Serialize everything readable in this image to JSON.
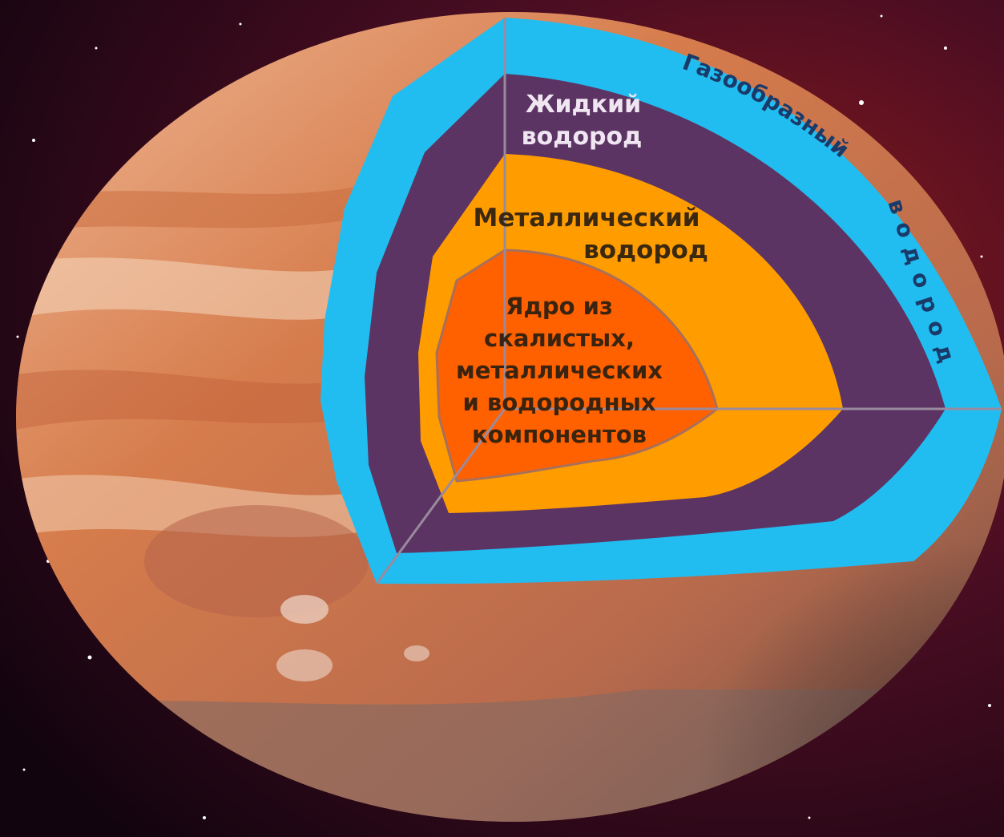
{
  "layers": {
    "liquid": {
      "line1": "Жидкий",
      "line2": "водород"
    },
    "metallic": {
      "line1": "Металлический",
      "line2": "водород"
    },
    "core": {
      "line1": "Ядро из",
      "line2": "скалистых,",
      "line3": "металлических",
      "line4": "и водородных",
      "line5": "компонентов"
    },
    "gas": {
      "arc_text": "Газообразный",
      "vertical_text": "водород"
    }
  },
  "colors": {
    "gas_layer": "#22bdf0",
    "liquid_layer": "#5c3464",
    "metallic_layer": "#ff9d00",
    "core": "#ff6000",
    "planet": "#d8845a",
    "space": "#2a0a1e"
  }
}
